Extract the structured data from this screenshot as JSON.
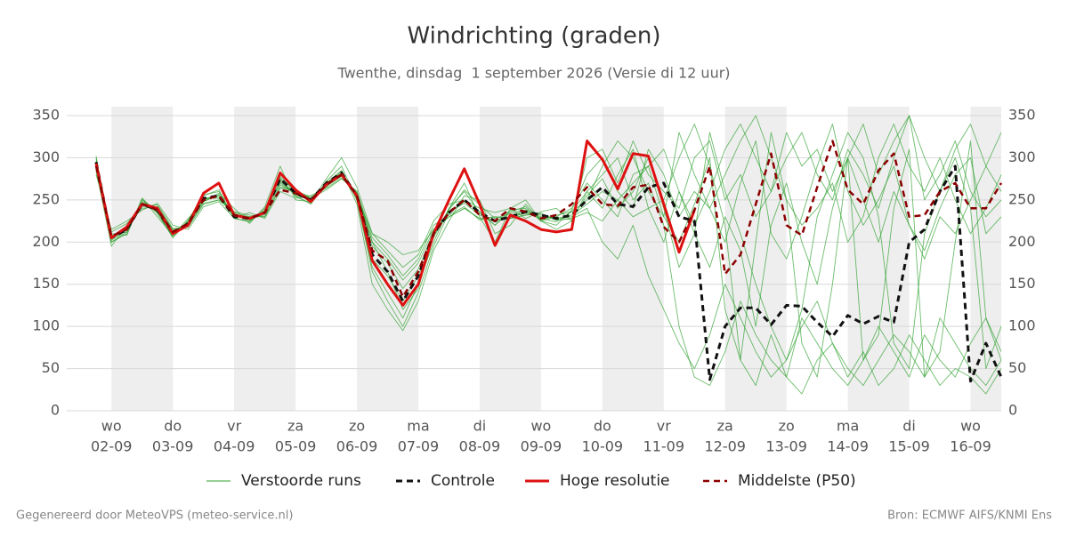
{
  "chart_data": {
    "type": "line",
    "title": "Windrichting (graden)",
    "subtitle": "Twenthe, dinsdag  1 september 2026 (Versie di 12 uur)",
    "footer_left": "Gegenereerd door MeteoVPS (meteo-service.nl)",
    "footer_right": "Bron: ECMWF AIFS/KNMI Ens",
    "categories": [
      null,
      "02-09",
      null,
      null,
      null,
      "03-09",
      null,
      null,
      null,
      "04-09",
      null,
      null,
      null,
      "05-09",
      null,
      null,
      null,
      "06-09",
      null,
      null,
      null,
      "07-09",
      null,
      null,
      null,
      "08-09",
      null,
      null,
      null,
      "09-09",
      null,
      null,
      null,
      "10-09",
      null,
      null,
      null,
      "11-09",
      null,
      null,
      null,
      "12-09",
      null,
      null,
      null,
      "13-09",
      null,
      null,
      null,
      "14-09",
      null,
      null,
      null,
      "15-09",
      null,
      null,
      null,
      "16-09",
      null,
      null
    ],
    "weekdays": [
      null,
      "wo",
      null,
      null,
      null,
      "do",
      null,
      null,
      null,
      "vr",
      null,
      null,
      null,
      "za",
      null,
      null,
      null,
      "zo",
      null,
      null,
      null,
      "ma",
      null,
      null,
      null,
      "di",
      null,
      null,
      null,
      "wo",
      null,
      null,
      null,
      "do",
      null,
      null,
      null,
      "vr",
      null,
      null,
      null,
      "za",
      null,
      null,
      null,
      "zo",
      null,
      null,
      null,
      "ma",
      null,
      null,
      null,
      "di",
      null,
      null,
      null,
      "wo",
      null,
      null
    ],
    "ylim": [
      0,
      350
    ],
    "yticks": [
      0,
      50,
      100,
      150,
      200,
      250,
      300,
      350
    ],
    "grid": true,
    "ensemble": {
      "name": "Verstoorde runs",
      "color": "#2ca02c",
      "runs": [
        [
          300,
          200,
          212,
          250,
          235,
          205,
          225,
          255,
          262,
          228,
          225,
          238,
          275,
          255,
          245,
          270,
          285,
          250,
          170,
          140,
          110,
          150,
          200,
          240,
          260,
          235,
          220,
          238,
          240,
          225,
          230,
          240,
          270,
          250,
          230,
          280,
          290,
          230,
          200,
          245,
          300,
          120,
          60,
          200,
          330,
          250,
          80,
          40,
          150,
          300,
          60,
          90,
          240,
          310,
          40,
          70,
          200,
          320,
          110,
          60
        ],
        [
          285,
          195,
          220,
          240,
          242,
          215,
          218,
          245,
          250,
          235,
          230,
          230,
          265,
          262,
          252,
          262,
          275,
          260,
          200,
          180,
          155,
          175,
          215,
          230,
          240,
          228,
          230,
          228,
          232,
          234,
          226,
          228,
          255,
          275,
          240,
          260,
          300,
          240,
          170,
          210,
          330,
          260,
          210,
          150,
          100,
          60,
          120,
          230,
          280,
          330,
          300,
          230,
          80,
          50,
          210,
          260,
          300,
          240,
          50,
          100
        ],
        [
          292,
          210,
          208,
          252,
          230,
          208,
          228,
          248,
          258,
          240,
          222,
          242,
          290,
          250,
          248,
          275,
          300,
          265,
          210,
          190,
          170,
          185,
          225,
          245,
          250,
          240,
          235,
          240,
          228,
          236,
          240,
          225,
          260,
          280,
          300,
          250,
          270,
          220,
          100,
          40,
          30,
          70,
          130,
          90,
          60,
          40,
          110,
          80,
          50,
          30,
          60,
          100,
          70,
          40,
          90,
          60,
          40,
          80,
          110,
          70
        ],
        [
          280,
          215,
          225,
          238,
          246,
          220,
          215,
          242,
          248,
          228,
          235,
          228,
          260,
          252,
          255,
          265,
          285,
          245,
          150,
          120,
          95,
          130,
          190,
          225,
          255,
          250,
          210,
          220,
          245,
          225,
          220,
          238,
          280,
          300,
          260,
          240,
          310,
          280,
          230,
          260,
          240,
          280,
          320,
          350,
          300,
          250,
          220,
          240,
          270,
          200,
          230,
          300,
          340,
          290,
          260,
          300,
          250,
          210,
          240,
          280
        ],
        [
          298,
          205,
          218,
          244,
          238,
          210,
          222,
          252,
          254,
          232,
          228,
          236,
          272,
          256,
          250,
          268,
          282,
          252,
          180,
          160,
          130,
          160,
          205,
          240,
          270,
          230,
          200,
          240,
          250,
          225,
          215,
          225,
          300,
          310,
          270,
          320,
          280,
          260,
          240,
          300,
          320,
          250,
          280,
          230,
          260,
          300,
          330,
          280,
          250,
          310,
          280,
          240,
          300,
          350,
          250,
          280,
          320,
          260,
          230,
          250
        ],
        [
          288,
          208,
          212,
          248,
          240,
          212,
          220,
          250,
          256,
          230,
          230,
          232,
          268,
          258,
          252,
          266,
          278,
          258,
          195,
          175,
          145,
          168,
          212,
          236,
          246,
          232,
          224,
          230,
          234,
          232,
          228,
          230,
          240,
          200,
          180,
          220,
          160,
          120,
          80,
          50,
          90,
          150,
          110,
          70,
          40,
          60,
          100,
          130,
          80,
          50,
          30,
          60,
          90,
          70,
          40,
          110,
          80,
          50,
          30,
          60
        ],
        [
          295,
          202,
          216,
          246,
          236,
          208,
          224,
          252,
          252,
          234,
          226,
          234,
          278,
          260,
          248,
          270,
          282,
          256,
          200,
          165,
          120,
          145,
          208,
          238,
          262,
          244,
          228,
          234,
          238,
          228,
          224,
          236,
          250,
          290,
          320,
          300,
          260,
          230,
          330,
          280,
          240,
          200,
          270,
          320,
          210,
          180,
          230,
          290,
          340,
          260,
          220,
          250,
          290,
          220,
          190,
          240,
          280,
          300,
          210,
          230
        ],
        [
          290,
          206,
          214,
          244,
          240,
          214,
          220,
          248,
          256,
          232,
          228,
          236,
          270,
          258,
          250,
          268,
          280,
          255,
          210,
          200,
          185,
          190,
          215,
          230,
          240,
          228,
          226,
          230,
          236,
          230,
          228,
          232,
          245,
          260,
          250,
          230,
          240,
          250,
          300,
          340,
          290,
          220,
          60,
          30,
          90,
          40,
          20,
          60,
          80,
          40,
          70,
          30,
          50,
          90,
          60,
          30,
          50,
          40,
          20,
          50
        ],
        [
          302,
          200,
          210,
          252,
          234,
          206,
          226,
          256,
          260,
          228,
          224,
          240,
          276,
          254,
          246,
          272,
          290,
          250,
          165,
          130,
          100,
          140,
          195,
          235,
          248,
          236,
          220,
          236,
          242,
          226,
          232,
          236,
          260,
          240,
          280,
          310,
          240,
          200,
          260,
          210,
          170,
          230,
          190,
          100,
          220,
          270,
          200,
          150,
          240,
          300,
          250,
          200,
          260,
          220,
          180,
          230,
          210,
          250,
          290,
          260
        ],
        [
          284,
          212,
          222,
          242,
          244,
          216,
          218,
          246,
          250,
          236,
          232,
          230,
          264,
          260,
          254,
          264,
          276,
          260,
          205,
          185,
          160,
          180,
          220,
          232,
          242,
          226,
          230,
          228,
          232,
          234,
          226,
          228,
          235,
          225,
          250,
          270,
          290,
          310,
          260,
          220,
          260,
          310,
          340,
          300,
          260,
          330,
          290,
          310,
          260,
          300,
          340,
          280,
          320,
          350,
          300,
          260,
          310,
          340,
          290,
          330
        ]
      ]
    },
    "series": [
      {
        "name": "Controle",
        "color": "#111111",
        "dashed": true,
        "width": 3,
        "values": [
          295,
          205,
          215,
          245,
          238,
          210,
          222,
          252,
          255,
          230,
          228,
          235,
          275,
          258,
          250,
          270,
          282,
          255,
          185,
          165,
          130,
          160,
          210,
          235,
          250,
          235,
          225,
          230,
          236,
          232,
          228,
          232,
          250,
          265,
          245,
          242,
          265,
          270,
          230,
          225,
          37,
          100,
          122,
          122,
          102,
          125,
          124,
          105,
          88,
          113,
          103,
          112,
          105,
          200,
          215,
          260,
          290,
          35,
          80,
          40
        ]
      },
      {
        "name": "Hoge resolutie",
        "color": "#dd1111",
        "dashed": false,
        "width": 3,
        "values": [
          293,
          205,
          218,
          245,
          240,
          210,
          220,
          258,
          270,
          232,
          228,
          235,
          282,
          262,
          248,
          268,
          280,
          255,
          178,
          150,
          125,
          150,
          210,
          250,
          287,
          245,
          196,
          232,
          225,
          215,
          212,
          215,
          320,
          298,
          263,
          305,
          302,
          245,
          188,
          238,
          null,
          null,
          null,
          null,
          null,
          null,
          null,
          null,
          null,
          null,
          null,
          null,
          null,
          null,
          null,
          null,
          null,
          null,
          null,
          null
        ]
      },
      {
        "name": "Middelste (P50)",
        "color": "#8b0000",
        "dashed": true,
        "width": 2.5,
        "values": [
          290,
          207,
          215,
          245,
          238,
          212,
          222,
          250,
          255,
          232,
          228,
          235,
          262,
          258,
          250,
          268,
          280,
          255,
          190,
          178,
          135,
          165,
          210,
          235,
          250,
          232,
          225,
          240,
          236,
          228,
          232,
          245,
          265,
          245,
          243,
          265,
          268,
          218,
          200,
          238,
          290,
          162,
          185,
          245,
          305,
          220,
          208,
          265,
          320,
          262,
          245,
          285,
          305,
          230,
          232,
          260,
          270,
          240,
          240,
          270
        ]
      }
    ]
  }
}
